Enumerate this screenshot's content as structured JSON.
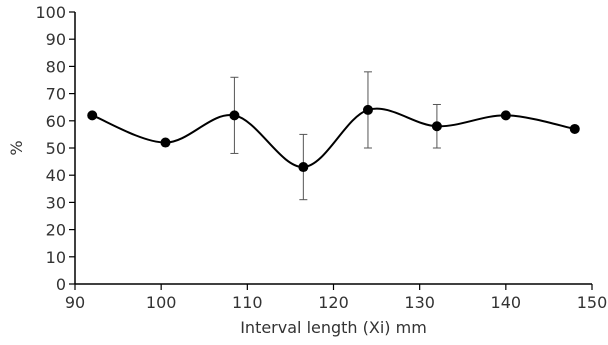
{
  "chart_data": {
    "type": "line",
    "title": "",
    "xlabel": "Interval length (Xi) mm",
    "ylabel": "%",
    "xlim": [
      90,
      150
    ],
    "ylim": [
      0,
      100
    ],
    "x_ticks": [
      90,
      100,
      110,
      120,
      130,
      140,
      150
    ],
    "y_ticks": [
      0,
      10,
      20,
      30,
      40,
      50,
      60,
      70,
      80,
      90,
      100
    ],
    "grid": false,
    "smooth": true,
    "series": [
      {
        "points": [
          {
            "x": 92,
            "y": 62
          },
          {
            "x": 100.5,
            "y": 52
          },
          {
            "x": 108.5,
            "y": 62,
            "err_low": 48,
            "err_high": 76
          },
          {
            "x": 116.5,
            "y": 43,
            "err_low": 31,
            "err_high": 55
          },
          {
            "x": 124,
            "y": 64,
            "err_low": 50,
            "err_high": 78
          },
          {
            "x": 132,
            "y": 58,
            "err_low": 50,
            "err_high": 66
          },
          {
            "x": 140,
            "y": 62
          },
          {
            "x": 148,
            "y": 57
          }
        ]
      }
    ],
    "colors": {
      "line": "#000000",
      "marker": "#000000",
      "axis": "#000000",
      "errorbar": "#555555",
      "text": "#333333"
    }
  }
}
